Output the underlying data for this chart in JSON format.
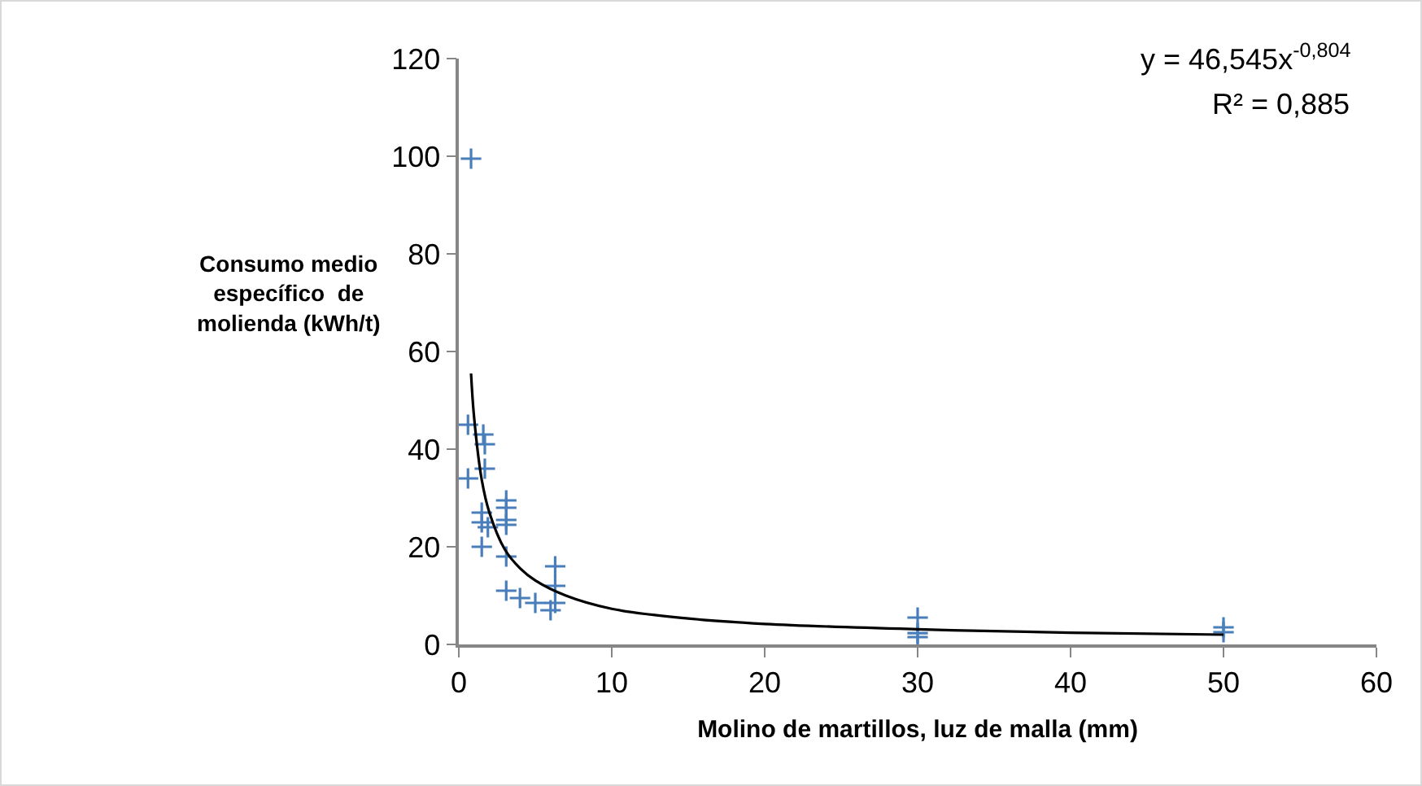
{
  "chart_data": {
    "type": "scatter",
    "xlabel": "Molino de martillos, luz de malla (mm)",
    "ylabel": "Consumo medio\nespecífico  de\nmolienda (kWh/t)",
    "xlim": [
      0,
      60
    ],
    "xticks": [
      0,
      10,
      20,
      30,
      40,
      50,
      60
    ],
    "ylim": [
      0,
      120
    ],
    "yticks": [
      0,
      20,
      40,
      60,
      80,
      100,
      120
    ],
    "grid": false,
    "legend": false,
    "marker": "cross",
    "annotations": [
      "y = 46,545x$^{-0,804}$",
      "R² = 0,885"
    ],
    "series": [
      {
        "color": "#4a7ebb",
        "x": [
          0.8,
          0.6,
          1.6,
          1.7,
          0.6,
          1.7,
          1.5,
          1.5,
          1.9,
          1.5,
          3.1,
          3.1,
          3.1,
          3.1,
          3.1,
          3.1,
          4.0,
          5.0,
          6.0,
          6.3,
          6.3,
          6.3,
          30,
          30,
          30,
          50,
          50
        ],
        "values": [
          99.5,
          45,
          43,
          41,
          34,
          36,
          27,
          25,
          24,
          20,
          29.5,
          28,
          25.5,
          24.5,
          18,
          11,
          9.5,
          8.5,
          7,
          16,
          12,
          8.5,
          5.5,
          2.3,
          1.5,
          3.5,
          2.5
        ]
      },
      {
        "type": "line",
        "color": "#000000",
        "marker": "none",
        "x": [
          0.8,
          1,
          1.5,
          2,
          3,
          4,
          5,
          7,
          10,
          15,
          20,
          30,
          40,
          50
        ],
        "values": [
          55.5,
          46.5,
          33.7,
          27,
          19.5,
          15.6,
          13.1,
          10,
          7.3,
          5.3,
          4.2,
          3.1,
          2.4,
          2
        ]
      }
    ]
  }
}
